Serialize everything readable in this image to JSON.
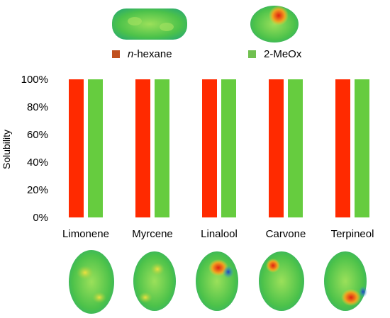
{
  "chart_data": {
    "type": "bar",
    "categories": [
      "Limonene",
      "Myrcene",
      "Linalool",
      "Carvone",
      "Terpineol"
    ],
    "series": [
      {
        "name": "n-hexane",
        "values": [
          100,
          100,
          100,
          100,
          100
        ],
        "color": "#ff2a00",
        "legend_color": "#c0501e"
      },
      {
        "name": "2-MeOx",
        "values": [
          100,
          100,
          100,
          100,
          100
        ],
        "color": "#66cc3f",
        "legend_color": "#70c050"
      }
    ],
    "legend": {
      "prefix": "n",
      "hexane_suffix": "-hexane"
    },
    "ylabel": "Solubility",
    "ylim": [
      0,
      100
    ],
    "yticks": [
      "0%",
      "20%",
      "40%",
      "60%",
      "80%",
      "100%"
    ],
    "legend_placement": "top",
    "grid": false,
    "molecule_surfaces": [
      "n-hexane",
      "2-MeOx",
      "Limonene",
      "Myrcene",
      "Linalool",
      "Carvone",
      "Terpineol"
    ]
  }
}
